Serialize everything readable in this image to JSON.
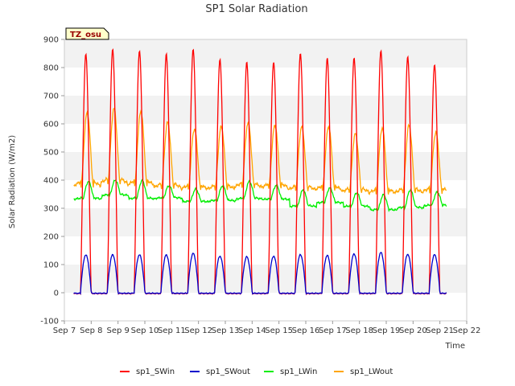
{
  "chart_data": {
    "type": "line",
    "title": "SP1 Solar Radiation",
    "xlabel": "Time",
    "ylabel": "Solar Radiation (W/m2)",
    "site_tag": "TZ_osu",
    "ylim": [
      -100,
      900
    ],
    "yticks": [
      -100,
      0,
      100,
      200,
      300,
      400,
      500,
      600,
      700,
      800,
      900
    ],
    "xlim": [
      7,
      22
    ],
    "x_unit": "day of Sep",
    "xticks": [
      7,
      8,
      9,
      10,
      11,
      12,
      13,
      14,
      15,
      16,
      17,
      18,
      19,
      20,
      21,
      22
    ],
    "xtick_labels": [
      "Sep 7",
      "Sep 8",
      "Sep 9",
      "Sep 10",
      "Sep 11",
      "Sep 12",
      "Sep 13",
      "Sep 14",
      "Sep 15",
      "Sep 16",
      "Sep 17",
      "Sep 18",
      "Sep 19",
      "Sep 20",
      "Sep 21",
      "Sep 22"
    ],
    "grid": "horizontal bands",
    "legend_position": "bottom",
    "series": [
      {
        "name": "sp1_SWin",
        "color": "#ff0000",
        "daily_peak_x": [
          7.8,
          8.8,
          9.8,
          10.8,
          11.8,
          12.8,
          13.8,
          14.8,
          15.8,
          16.8,
          17.8,
          18.8,
          19.8,
          20.8
        ],
        "daily_peak_y": [
          850,
          865,
          860,
          850,
          865,
          830,
          820,
          820,
          850,
          835,
          835,
          860,
          840,
          810
        ],
        "night_y": -3
      },
      {
        "name": "sp1_SWout",
        "color": "#0000cc",
        "daily_peak_x": [
          7.8,
          8.8,
          9.8,
          10.8,
          11.8,
          12.8,
          13.8,
          14.8,
          15.8,
          16.8,
          17.8,
          18.8,
          19.8,
          20.8
        ],
        "daily_peak_y": [
          135,
          135,
          135,
          135,
          140,
          130,
          128,
          130,
          135,
          133,
          138,
          143,
          137,
          135
        ],
        "night_y": -2
      },
      {
        "name": "sp1_LWin",
        "color": "#00ee00",
        "daily_peak_x": [
          7.9,
          8.9,
          9.9,
          10.9,
          11.9,
          12.9,
          13.9,
          14.9,
          15.9,
          16.9,
          17.9,
          18.9,
          19.9,
          20.9
        ],
        "daily_peak_y": [
          395,
          400,
          398,
          380,
          368,
          380,
          395,
          382,
          365,
          372,
          355,
          348,
          365,
          358
        ],
        "daily_min_y": [
          332,
          345,
          332,
          335,
          322,
          325,
          332,
          330,
          305,
          318,
          305,
          292,
          300,
          308
        ]
      },
      {
        "name": "sp1_LWout",
        "color": "#ffa500",
        "daily_peak_x": [
          7.85,
          8.85,
          9.85,
          10.85,
          11.85,
          12.85,
          13.85,
          14.85,
          15.85,
          16.85,
          17.85,
          18.85,
          19.85,
          20.85
        ],
        "daily_peak_y": [
          640,
          655,
          645,
          605,
          582,
          590,
          605,
          595,
          590,
          590,
          565,
          585,
          595,
          570
        ],
        "daily_min_y": [
          375,
          385,
          378,
          370,
          365,
          365,
          372,
          370,
          362,
          362,
          355,
          350,
          352,
          355
        ]
      }
    ]
  }
}
